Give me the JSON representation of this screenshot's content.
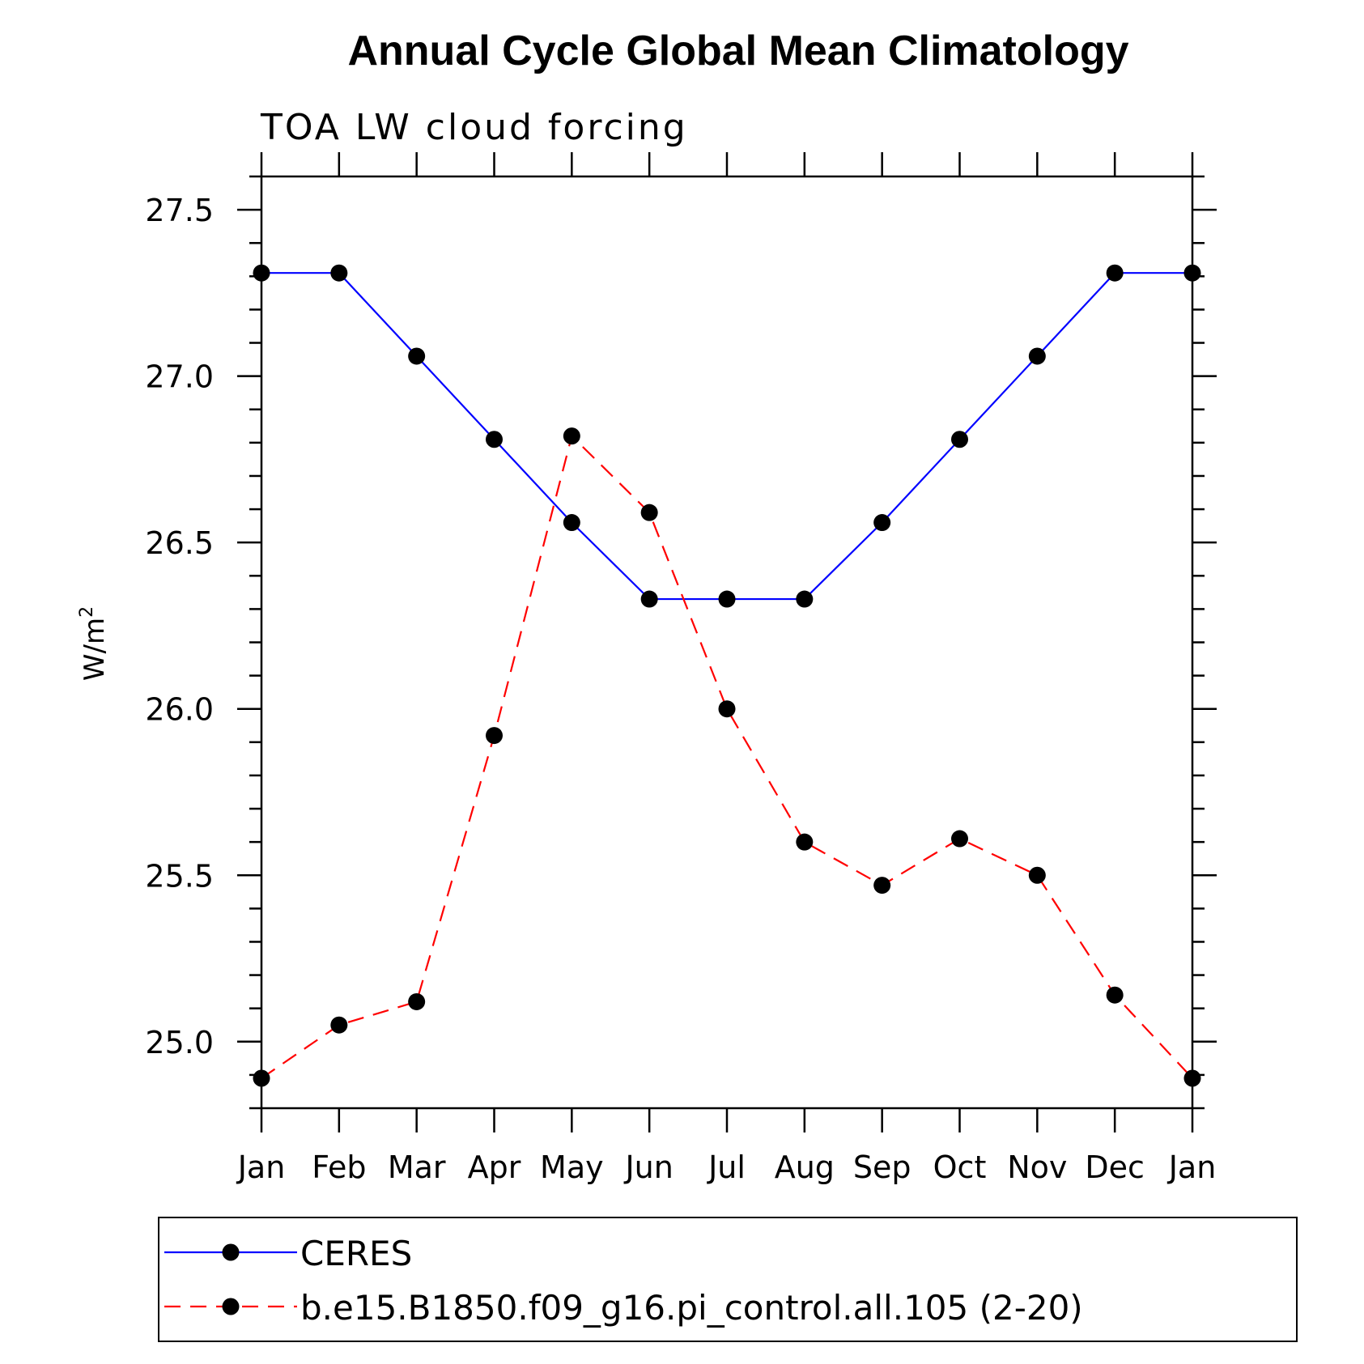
{
  "chart_data": {
    "type": "line",
    "title": "Annual Cycle Global Mean Climatology",
    "subtitle": "TOA LW cloud forcing",
    "ylabel": "W/m",
    "ylabel_sup": "2",
    "xlabel": "",
    "categories": [
      "Jan",
      "Feb",
      "Mar",
      "Apr",
      "May",
      "Jun",
      "Jul",
      "Aug",
      "Sep",
      "Oct",
      "Nov",
      "Dec",
      "Jan"
    ],
    "ylim": [
      24.8,
      27.6
    ],
    "yticks": [
      "25.0",
      "25.5",
      "26.0",
      "26.5",
      "27.0",
      "27.5"
    ],
    "series": [
      {
        "name": "CERES",
        "color": "#0000ff",
        "dash": "solid",
        "values": [
          27.31,
          27.31,
          27.06,
          26.81,
          26.56,
          26.33,
          26.33,
          26.33,
          26.56,
          26.81,
          27.06,
          27.31,
          27.31
        ]
      },
      {
        "name": "b.e15.B1850.f09_g16.pi_control.all.105 (2-20)",
        "color": "#ff0000",
        "dash": "dashed",
        "values": [
          24.89,
          25.05,
          25.12,
          25.92,
          26.82,
          26.59,
          26.0,
          25.6,
          25.47,
          25.61,
          25.5,
          25.14,
          24.89
        ]
      }
    ],
    "marker_color": "#000000",
    "grid": false,
    "legend_position": "bottom"
  }
}
